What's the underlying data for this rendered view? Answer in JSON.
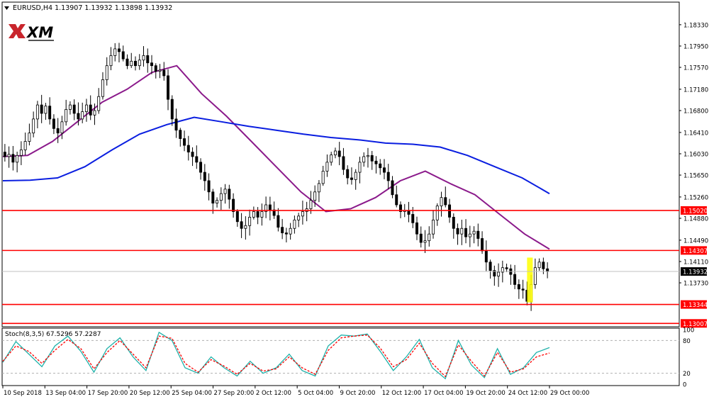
{
  "header": {
    "caption": "EURUSD,H4  1.13907 1.13932 1.13898 1.13932",
    "menu_icon": "triangle-down-icon",
    "logo_text": "XM"
  },
  "colors": {
    "bull_body": "#ffffff",
    "bear_body": "#000000",
    "ma_fast": "#8b1a8b",
    "ma_slow": "#0a1ee0",
    "level_line": "#ff0000",
    "highlight": "#ffff00",
    "stoch_main": "#20b2aa",
    "stoch_signal": "#ff0000",
    "price_label_bg": "#000000",
    "level_label_bg": "#ff0000"
  },
  "chart_data": [
    {
      "type": "candlestick",
      "symbol": "EURUSD",
      "timeframe": "H4",
      "ohlc_last": {
        "open": 1.13907,
        "high": 1.13932,
        "low": 1.13898,
        "close": 1.13932
      },
      "ylim": [
        1.1296,
        1.1872
      ],
      "y_ticks": [
        "1.18330",
        "1.17950",
        "1.17570",
        "1.17180",
        "1.16800",
        "1.16410",
        "1.16030",
        "1.15650",
        "1.15260",
        "1.14880",
        "1.14490",
        "1.14110",
        "1.13730"
      ],
      "x_ticks": [
        "10 Sep 2018",
        "13 Sep 04:00",
        "17 Sep 20:00",
        "20 Sep 12:00",
        "25 Sep 04:00",
        "27 Sep 20:00",
        "2 Oct 12:00",
        "5 Oct 04:00",
        "9 Oct 20:00",
        "12 Oct 12:00",
        "17 Oct 04:00",
        "19 Oct 20:00",
        "24 Oct 12:00",
        "29 Oct 00:00"
      ],
      "close_path": [
        1.1598,
        1.1602,
        1.1588,
        1.16,
        1.161,
        1.1625,
        1.164,
        1.1665,
        1.169,
        1.1675,
        1.1688,
        1.1665,
        1.1648,
        1.164,
        1.166,
        1.1682,
        1.169,
        1.1675,
        1.1665,
        1.1678,
        1.169,
        1.1672,
        1.168,
        1.1705,
        1.1735,
        1.176,
        1.1778,
        1.179,
        1.1785,
        1.1772,
        1.176,
        1.1768,
        1.176,
        1.177,
        1.1778,
        1.1765,
        1.176,
        1.175,
        1.1752,
        1.1742,
        1.17,
        1.1665,
        1.1645,
        1.163,
        1.1618,
        1.1606,
        1.1598,
        1.1588,
        1.157,
        1.1555,
        1.1535,
        1.1515,
        1.152,
        1.1532,
        1.154,
        1.1522,
        1.15,
        1.1482,
        1.147,
        1.1475,
        1.149,
        1.15,
        1.149,
        1.15,
        1.1512,
        1.1503,
        1.1493,
        1.1472,
        1.1462,
        1.146,
        1.147,
        1.1485,
        1.1492,
        1.15,
        1.1505,
        1.152,
        1.1535,
        1.155,
        1.1572,
        1.1588,
        1.1601,
        1.1608,
        1.1598,
        1.1575,
        1.156,
        1.1557,
        1.157,
        1.1588,
        1.1598,
        1.16,
        1.159,
        1.1585,
        1.1578,
        1.157,
        1.1555,
        1.153,
        1.1512,
        1.15,
        1.1502,
        1.1495,
        1.148,
        1.146,
        1.1445,
        1.1448,
        1.146,
        1.1485,
        1.151,
        1.1525,
        1.1512,
        1.149,
        1.147,
        1.146,
        1.147,
        1.1455,
        1.146,
        1.1465,
        1.1452,
        1.143,
        1.141,
        1.1395,
        1.1385,
        1.1392,
        1.14,
        1.1398,
        1.1388,
        1.137,
        1.1362,
        1.136,
        1.134,
        1.137,
        1.14,
        1.141,
        1.1398,
        1.1393
      ],
      "moving_averages": [
        {
          "role": "fast",
          "color": "#8b1a8b",
          "values": [
            1.1598,
            1.16,
            1.1625,
            1.166,
            1.1695,
            1.1718,
            1.1748,
            1.176,
            1.171,
            1.167,
            1.1625,
            1.158,
            1.1535,
            1.15,
            1.1505,
            1.1525,
            1.1555,
            1.1572,
            1.155,
            1.153,
            1.1495,
            1.146,
            1.1433
          ]
        },
        {
          "role": "slow",
          "color": "#0a1ee0",
          "values": [
            1.1555,
            1.1556,
            1.156,
            1.158,
            1.161,
            1.1638,
            1.1655,
            1.1668,
            1.166,
            1.1652,
            1.1645,
            1.1638,
            1.1632,
            1.1628,
            1.1622,
            1.162,
            1.1615,
            1.16,
            1.158,
            1.156,
            1.1532
          ]
        }
      ],
      "horizontal_levels": [
        {
          "label": "1.15020",
          "value": 1.1502,
          "color": "#ff0000"
        },
        {
          "label": "1.14307",
          "value": 1.14307,
          "color": "#ff0000"
        },
        {
          "label": "1.13344",
          "value": 1.13344,
          "color": "#ff0000"
        },
        {
          "label": "1.13007",
          "value": 1.13007,
          "color": "#ff0000"
        }
      ],
      "current_price": {
        "label": "1.13932",
        "value": 1.13932
      },
      "highlight_box": {
        "price_range": [
          1.1338,
          1.1418
        ],
        "note": "yellow highlight around the last swing low"
      },
      "grid": false
    },
    {
      "type": "line",
      "indicator": "Stoch(8,3,5) 67.5296 57.2287",
      "series": [
        {
          "role": "main",
          "color": "#20b2aa",
          "values": [
            40,
            78,
            55,
            32,
            70,
            88,
            60,
            22,
            65,
            85,
            50,
            25,
            95,
            80,
            30,
            20,
            50,
            30,
            15,
            42,
            20,
            30,
            55,
            25,
            15,
            70,
            90,
            88,
            92,
            60,
            25,
            50,
            82,
            30,
            10,
            80,
            35,
            12,
            65,
            18,
            30,
            58,
            67
          ]
        },
        {
          "role": "signal",
          "color": "#ff0000",
          "values": [
            42,
            70,
            60,
            38,
            62,
            82,
            65,
            28,
            58,
            80,
            55,
            30,
            88,
            84,
            38,
            22,
            45,
            33,
            18,
            38,
            24,
            28,
            50,
            30,
            18,
            62,
            85,
            88,
            90,
            66,
            32,
            45,
            75,
            38,
            14,
            72,
            42,
            15,
            58,
            22,
            28,
            50,
            57
          ]
        }
      ],
      "ylim": [
        0,
        100
      ],
      "y_ticks": [
        "100",
        "80",
        "20",
        "0"
      ],
      "levels": [
        80,
        20
      ]
    }
  ]
}
